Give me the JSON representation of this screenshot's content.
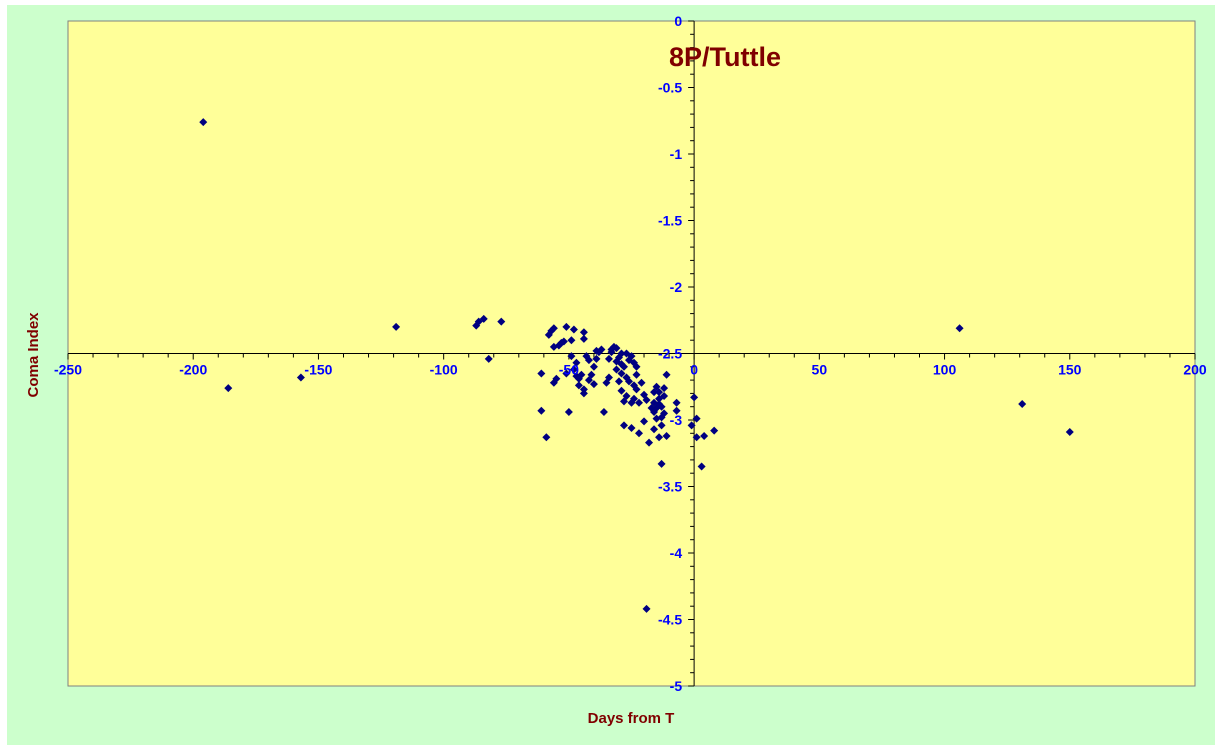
{
  "colors": {
    "chart_area": "#ccffcc",
    "plot_area": "#ffff99",
    "title": "#800000",
    "axis_label": "#800000",
    "tick_label": "#0000ff",
    "marker": "#000080",
    "axis_line": "#000000"
  },
  "chart_data": {
    "type": "scatter",
    "title": "8P/Tuttle",
    "xlabel": "Days from T",
    "ylabel": "Coma Index",
    "xlim": [
      -250,
      200
    ],
    "ylim": [
      -5,
      0
    ],
    "x_major_step": 50,
    "y_major_step": 0.5,
    "x_ticks": [
      "-250",
      "-200",
      "-150",
      "-100",
      "-50",
      "0",
      "50",
      "100",
      "150",
      "200"
    ],
    "y_ticks": [
      "0",
      "-0.5",
      "-1",
      "-1.5",
      "-2",
      "-2.5",
      "-3",
      "-3.5",
      "-4",
      "-4.5",
      "-5"
    ],
    "x_axis_crosses_y": -2.5,
    "y_axis_crosses_x": 0,
    "grid": false,
    "legend": "none",
    "marker": "diamond",
    "points": [
      [
        -196,
        -0.76
      ],
      [
        -186,
        -2.76
      ],
      [
        -157,
        -2.68
      ],
      [
        -119,
        -2.3
      ],
      [
        -87,
        -2.29
      ],
      [
        -86,
        -2.26
      ],
      [
        -84,
        -2.24
      ],
      [
        -82,
        -2.54
      ],
      [
        -77,
        -2.26
      ],
      [
        -61,
        -2.65
      ],
      [
        -61,
        -2.93
      ],
      [
        -59,
        -3.13
      ],
      [
        -58,
        -2.36
      ],
      [
        -57,
        -2.33
      ],
      [
        -56,
        -2.31
      ],
      [
        -56,
        -2.45
      ],
      [
        -56,
        -2.72
      ],
      [
        -55,
        -2.69
      ],
      [
        -54,
        -2.44
      ],
      [
        -53,
        -2.42
      ],
      [
        -52,
        -2.41
      ],
      [
        -51,
        -2.3
      ],
      [
        -51,
        -2.65
      ],
      [
        -50,
        -2.94
      ],
      [
        -49,
        -2.4
      ],
      [
        -49,
        -2.52
      ],
      [
        -48,
        -2.32
      ],
      [
        -48,
        -2.62
      ],
      [
        -47,
        -2.57
      ],
      [
        -47,
        -2.67
      ],
      [
        -46,
        -2.69
      ],
      [
        -46,
        -2.74
      ],
      [
        -45,
        -2.66
      ],
      [
        -44,
        -2.39
      ],
      [
        -44,
        -2.34
      ],
      [
        -44,
        -2.8
      ],
      [
        -44,
        -2.77
      ],
      [
        -43,
        -2.52
      ],
      [
        -42,
        -2.55
      ],
      [
        -42,
        -2.7
      ],
      [
        -41,
        -2.66
      ],
      [
        -40,
        -2.73
      ],
      [
        -40,
        -2.6
      ],
      [
        -39,
        -2.54
      ],
      [
        -39,
        -2.48
      ],
      [
        -38,
        -2.49
      ],
      [
        -37,
        -2.47
      ],
      [
        -36,
        -2.94
      ],
      [
        -35,
        -2.72
      ],
      [
        -34,
        -2.68
      ],
      [
        -34,
        -2.54
      ],
      [
        -33,
        -2.49
      ],
      [
        -33,
        -2.47
      ],
      [
        -32,
        -2.45
      ],
      [
        -31,
        -2.46
      ],
      [
        -31,
        -2.56
      ],
      [
        -31,
        -2.62
      ],
      [
        -30,
        -2.71
      ],
      [
        -30,
        -2.53
      ],
      [
        -29,
        -2.5
      ],
      [
        -29,
        -2.58
      ],
      [
        -29,
        -2.65
      ],
      [
        -29,
        -2.78
      ],
      [
        -28,
        -2.86
      ],
      [
        -28,
        -3.04
      ],
      [
        -28,
        -2.6
      ],
      [
        -27,
        -2.5
      ],
      [
        -27,
        -2.68
      ],
      [
        -27,
        -2.82
      ],
      [
        -26,
        -2.55
      ],
      [
        -26,
        -2.71
      ],
      [
        -25,
        -2.52
      ],
      [
        -25,
        -2.87
      ],
      [
        -25,
        -3.06
      ],
      [
        -24,
        -2.57
      ],
      [
        -24,
        -2.74
      ],
      [
        -24,
        -2.84
      ],
      [
        -23,
        -2.6
      ],
      [
        -23,
        -2.66
      ],
      [
        -23,
        -2.77
      ],
      [
        -22,
        -2.87
      ],
      [
        -22,
        -3.1
      ],
      [
        -21,
        -2.72
      ],
      [
        -20,
        -2.81
      ],
      [
        -20,
        -3.01
      ],
      [
        -19,
        -4.42
      ],
      [
        -19,
        -2.85
      ],
      [
        -18,
        -3.17
      ],
      [
        -17,
        -2.91
      ],
      [
        -16,
        -2.79
      ],
      [
        -16,
        -2.87
      ],
      [
        -16,
        -2.94
      ],
      [
        -16,
        -3.07
      ],
      [
        -15,
        -2.75
      ],
      [
        -15,
        -2.91
      ],
      [
        -15,
        -2.99
      ],
      [
        -14,
        -2.84
      ],
      [
        -14,
        -2.79
      ],
      [
        -14,
        -2.88
      ],
      [
        -14,
        -3.13
      ],
      [
        -13,
        -2.98
      ],
      [
        -13,
        -2.9
      ],
      [
        -13,
        -3.33
      ],
      [
        -13,
        -3.04
      ],
      [
        -12,
        -2.82
      ],
      [
        -12,
        -2.76
      ],
      [
        -12,
        -2.95
      ],
      [
        -11,
        -2.66
      ],
      [
        -11,
        -3.12
      ],
      [
        -7,
        -2.87
      ],
      [
        -7,
        -2.93
      ],
      [
        -1,
        -3.04
      ],
      [
        0,
        -2.83
      ],
      [
        1,
        -3.13
      ],
      [
        1,
        -2.99
      ],
      [
        3,
        -3.35
      ],
      [
        4,
        -3.12
      ],
      [
        8,
        -3.08
      ],
      [
        106,
        -2.31
      ],
      [
        131,
        -2.88
      ],
      [
        150,
        -3.09
      ]
    ]
  }
}
